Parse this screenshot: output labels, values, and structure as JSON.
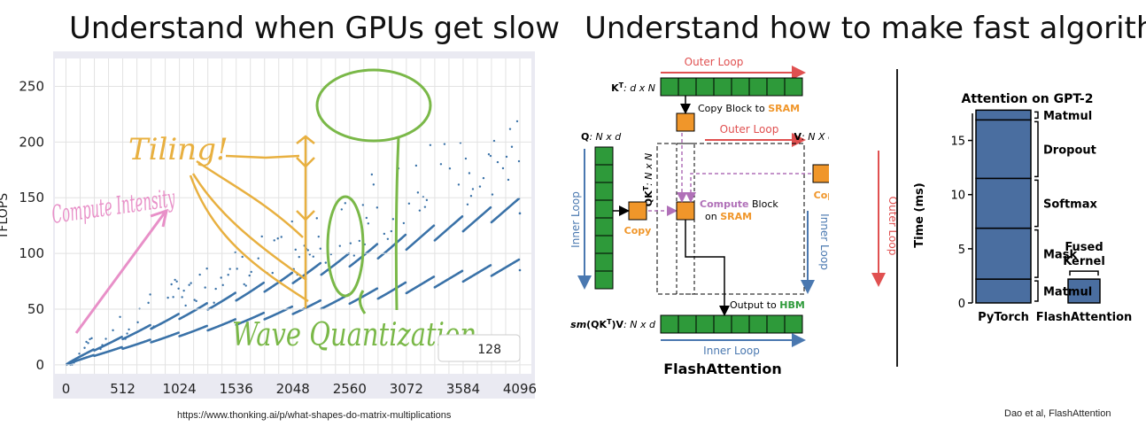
{
  "titles": {
    "left": "Understand when GPUs get slow",
    "right": "Understand how to make fast algorithms"
  },
  "sources": {
    "left": "https://www.thonking.ai/p/what-shapes-do-matrix-multiplications",
    "right": "Dao et al, FlashAttention"
  },
  "colors": {
    "series": "#3a72a8",
    "annotation_orange": "#e8b040",
    "annotation_pink": "#e890c8",
    "annotation_green": "#7ab848",
    "fa_green": "#2e9a3a",
    "fa_orange": "#f0962a",
    "fa_red": "#e05050",
    "fa_blue": "#4a78b0",
    "fa_purple": "#b070b8",
    "bar_blue": "#4a6ea0"
  },
  "chart_data": [
    {
      "type": "scatter",
      "title": "",
      "xlabel": "",
      "ylabel": "TFLOPS",
      "xlim": [
        -100,
        4200
      ],
      "ylim": [
        -8,
        275
      ],
      "x_ticks": [
        "0",
        "512",
        "1024",
        "1536",
        "2048",
        "2560",
        "3072",
        "3584",
        "4096"
      ],
      "y_ticks": [
        "0",
        "50",
        "100",
        "150",
        "200",
        "250"
      ],
      "grid_x_minor_step": 128,
      "legend": {
        "placement": "bottom-right",
        "label": "128"
      },
      "series": [
        {
          "shape": "scattered",
          "start": [
            0,
            0
          ],
          "end": [
            4096,
            235
          ],
          "teeth_every": 256,
          "tooth_drop": 45,
          "spread": 70
        },
        {
          "shape": "dense",
          "start": [
            0,
            0
          ],
          "end": [
            4096,
            150
          ],
          "teeth_every": 256,
          "tooth_drop": 14
        },
        {
          "shape": "dense",
          "start": [
            0,
            0
          ],
          "end": [
            4096,
            95
          ],
          "teeth_every": 256,
          "tooth_drop": 10
        }
      ],
      "annotations": {
        "tiling": "Tiling!",
        "compute_intensity": "Compute Intensity",
        "wave_quantization": "Wave Quantization"
      }
    },
    {
      "type": "bar",
      "title": "Attention on GPT-2",
      "ylabel": "Time (ms)",
      "ylim": [
        0,
        17.5
      ],
      "y_ticks": [
        "0",
        "5",
        "10",
        "15"
      ],
      "categories": [
        "PyTorch",
        "FlashAttention"
      ],
      "stacks": [
        {
          "category": "PyTorch",
          "segments": [
            {
              "label": "Matmul",
              "value": 2.2
            },
            {
              "label": "Mask",
              "value": 4.7
            },
            {
              "label": "Softmax",
              "value": 4.6
            },
            {
              "label": "Dropout",
              "value": 5.4
            },
            {
              "label": "Matmul",
              "value": 0.9
            }
          ]
        },
        {
          "category": "FlashAttention",
          "segments": [
            {
              "label": "Fused Kernel",
              "value": 2.2
            }
          ]
        }
      ],
      "fused_label": [
        "Fused",
        "Kernel"
      ]
    }
  ],
  "flash_attention": {
    "caption": "FlashAttention",
    "kt_label": {
      "bold": "K",
      "sup": "T",
      "rest": ": d x N"
    },
    "q_label": {
      "bold": "Q",
      "rest": ": N x d"
    },
    "v_label": {
      "bold": "V",
      "rest": ": N X d"
    },
    "qkt_label": {
      "bold": "QK",
      "sup": "T",
      "rest": ": N x N"
    },
    "out_label": {
      "pre": "sm",
      "bold": "(QK",
      "sup": "T",
      "close": ")V",
      "rest": ": N x d"
    },
    "outer_loop": "Outer Loop",
    "inner_loop": "Inner Loop",
    "copy_block_pre": "Copy Block to",
    "sram": "SRAM",
    "copy": "Copy",
    "compute": "Compute",
    "block": "Block",
    "on": "on",
    "output_to": "Output to",
    "hbm": "HBM"
  }
}
